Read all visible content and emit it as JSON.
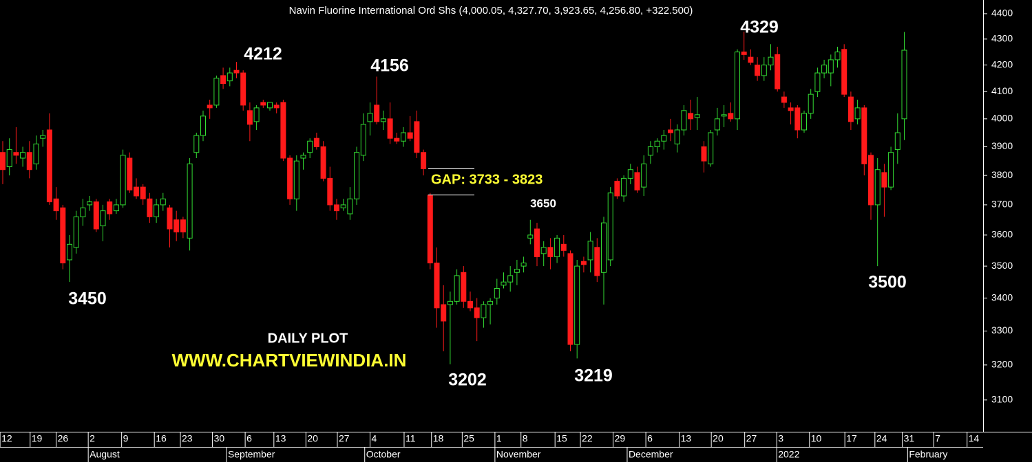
{
  "chart_data": {
    "type": "candlestick",
    "title": "Navin Fluorine International Ord Shs (4,000.05, 4,327.70, 3,923.65, 4,256.80, +322.500)",
    "log_scale": true,
    "up_color": "#33dd33",
    "down_color": "#ff1a1a",
    "ylim": [
      3012,
      4455
    ],
    "yticks": [
      3100,
      3200,
      3300,
      3400,
      3500,
      3600,
      3700,
      3800,
      3900,
      4000,
      4100,
      4200,
      4300,
      4400
    ],
    "open": [
      3880,
      3830,
      3880,
      3860,
      3880,
      3840,
      3930,
      3960,
      3720,
      3690,
      3520,
      3560,
      3660,
      3700,
      3710,
      3630,
      3710,
      3680,
      3700,
      3860,
      3760,
      3760,
      3720,
      3660,
      3700,
      3690,
      3650,
      3650,
      3590,
      3880,
      3940,
      4050,
      4050,
      4160,
      4140,
      4180,
      4170,
      4030,
      3990,
      4060,
      4040,
      4050,
      4060,
      3860,
      3720,
      3860,
      3880,
      3930,
      3900,
      3790,
      3700,
      3690,
      3670,
      3720,
      3870,
      3990,
      4050,
      3990,
      4000,
      3930,
      3920,
      3950,
      3990,
      3880,
      3733,
      3510,
      3380,
      3380,
      3390,
      3480,
      3390,
      3370,
      3340,
      3380,
      3400,
      3440,
      3450,
      3480,
      3500,
      3590,
      3620,
      3540,
      3560,
      3530,
      3570,
      3540,
      3260,
      3515,
      3520,
      3560,
      3480,
      3520,
      3780,
      3730,
      3790,
      3810,
      3760,
      3870,
      3900,
      3920,
      3960,
      3910,
      3960,
      4020,
      4005,
      3900,
      3840,
      3960,
      4010,
      4020,
      4000,
      4250,
      4230,
      4200,
      4160,
      4200,
      4240,
      4080,
      4040,
      4040,
      3960,
      4020,
      4100,
      4170,
      4170,
      4220,
      4260,
      4080,
      4000,
      4040,
      3870,
      3700,
      3810,
      3760,
      3890,
      4000.05
    ],
    "high": [
      3920,
      3930,
      3970,
      3900,
      3920,
      3940,
      3960,
      4020,
      3760,
      3700,
      3600,
      3680,
      3720,
      3730,
      3720,
      3700,
      3720,
      3720,
      3890,
      3880,
      3790,
      3770,
      3740,
      3720,
      3740,
      3700,
      3680,
      3660,
      3860,
      3950,
      4030,
      4070,
      4160,
      4190,
      4190,
      4212,
      4180,
      4060,
      4050,
      4070,
      4060,
      4060,
      4070,
      3870,
      3870,
      3880,
      3930,
      3950,
      3920,
      3830,
      3720,
      3720,
      3760,
      3900,
      4020,
      4060,
      4156,
      4030,
      4060,
      3950,
      3970,
      4010,
      4030,
      3890,
      3740,
      3560,
      3440,
      3420,
      3490,
      3500,
      3420,
      3400,
      3390,
      3400,
      3460,
      3480,
      3500,
      3520,
      3530,
      3650,
      3640,
      3580,
      3590,
      3600,
      3600,
      3550,
      3520,
      3530,
      3610,
      3590,
      3660,
      3760,
      3790,
      3800,
      3840,
      3830,
      3870,
      3920,
      3930,
      3960,
      4000,
      3980,
      4050,
      4070,
      4080,
      3920,
      3960,
      4040,
      4050,
      4060,
      4260,
      4329,
      4260,
      4230,
      4230,
      4280,
      4270,
      4100,
      4060,
      4050,
      4030,
      4110,
      4190,
      4220,
      4240,
      4270,
      4280,
      4100,
      4070,
      4050,
      3880,
      3860,
      3840,
      3900,
      4020,
      4327.7
    ],
    "low": [
      3770,
      3800,
      3840,
      3830,
      3790,
      3820,
      3900,
      3700,
      3650,
      3490,
      3450,
      3540,
      3630,
      3680,
      3610,
      3580,
      3650,
      3670,
      3690,
      3740,
      3720,
      3700,
      3640,
      3640,
      3680,
      3560,
      3580,
      3590,
      3550,
      3860,
      3920,
      4000,
      4040,
      4110,
      4120,
      4150,
      4030,
      3920,
      3960,
      4040,
      4030,
      4020,
      3850,
      3700,
      3680,
      3820,
      3860,
      3890,
      3780,
      3680,
      3650,
      3680,
      3650,
      3700,
      3850,
      3940,
      3980,
      3960,
      3910,
      3910,
      3900,
      3920,
      3860,
      3800,
      3490,
      3310,
      3240,
      3202,
      3380,
      3370,
      3360,
      3270,
      3310,
      3320,
      3380,
      3430,
      3420,
      3440,
      3480,
      3570,
      3500,
      3500,
      3490,
      3510,
      3530,
      3240,
      3219,
      3480,
      3480,
      3450,
      3380,
      3500,
      3720,
      3710,
      3770,
      3740,
      3730,
      3840,
      3880,
      3890,
      3920,
      3880,
      3940,
      3960,
      3960,
      3810,
      3830,
      3940,
      3970,
      3990,
      3960,
      4220,
      4200,
      4140,
      4140,
      4180,
      4100,
      4040,
      3980,
      3930,
      3950,
      4000,
      4080,
      4150,
      4120,
      4190,
      4080,
      3960,
      3980,
      3800,
      3650,
      3500,
      3660,
      3750,
      3840,
      3923.65
    ],
    "close": [
      3820,
      3890,
      3870,
      3880,
      3820,
      3910,
      3940,
      3710,
      3680,
      3510,
      3570,
      3660,
      3690,
      3710,
      3620,
      3680,
      3670,
      3700,
      3870,
      3750,
      3730,
      3720,
      3660,
      3700,
      3720,
      3620,
      3610,
      3610,
      3840,
      3940,
      4010,
      4040,
      4150,
      4130,
      4170,
      4170,
      4050,
      3980,
      4040,
      4050,
      4060,
      4040,
      3860,
      3720,
      3850,
      3870,
      3920,
      3900,
      3790,
      3700,
      3680,
      3700,
      3720,
      3880,
      3980,
      4020,
      3990,
      4000,
      3930,
      3920,
      3950,
      3930,
      3880,
      3823,
      3510,
      3370,
      3330,
      3390,
      3470,
      3390,
      3370,
      3340,
      3380,
      3390,
      3430,
      3450,
      3470,
      3490,
      3510,
      3600,
      3530,
      3560,
      3530,
      3590,
      3550,
      3260,
      3500,
      3505,
      3580,
      3470,
      3640,
      3740,
      3730,
      3790,
      3820,
      3750,
      3840,
      3900,
      3920,
      3940,
      3950,
      3960,
      4030,
      4000,
      4015,
      3850,
      3950,
      4000,
      4015,
      4000,
      4250,
      4240,
      4210,
      4160,
      4200,
      4230,
      4110,
      4060,
      4030,
      3960,
      4020,
      4090,
      4170,
      4200,
      4220,
      4250,
      4090,
      3990,
      4040,
      3840,
      3700,
      3820,
      3760,
      3880,
      3950,
      4256.8
    ],
    "xticks": [
      {
        "value": -0.4,
        "label": "12"
      },
      {
        "value": 4.1,
        "label": "19"
      },
      {
        "value": 8.0,
        "label": "26"
      },
      {
        "value": 12.8,
        "label": "2"
      },
      {
        "value": 17.8,
        "label": "9"
      },
      {
        "value": 22.7,
        "label": "16"
      },
      {
        "value": 26.6,
        "label": "23"
      },
      {
        "value": 31.4,
        "label": "30"
      },
      {
        "value": 36.3,
        "label": "6"
      },
      {
        "value": 40.6,
        "label": "13"
      },
      {
        "value": 45.4,
        "label": "20"
      },
      {
        "value": 50.1,
        "label": "27"
      },
      {
        "value": 55.0,
        "label": "4"
      },
      {
        "value": 60.1,
        "label": "11"
      },
      {
        "value": 64.2,
        "label": "18"
      },
      {
        "value": 68.8,
        "label": "25"
      },
      {
        "value": 73.7,
        "label": "1"
      },
      {
        "value": 77.6,
        "label": "8"
      },
      {
        "value": 82.7,
        "label": "15"
      },
      {
        "value": 86.5,
        "label": "22"
      },
      {
        "value": 91.4,
        "label": "29"
      },
      {
        "value": 96.3,
        "label": "6"
      },
      {
        "value": 101.3,
        "label": "13"
      },
      {
        "value": 106.1,
        "label": "20"
      },
      {
        "value": 111.1,
        "label": "27"
      },
      {
        "value": 115.9,
        "label": "3"
      },
      {
        "value": 120.8,
        "label": "10"
      },
      {
        "value": 126.1,
        "label": "17"
      },
      {
        "value": 130.6,
        "label": "24"
      },
      {
        "value": 134.7,
        "label": "31"
      },
      {
        "value": 139.4,
        "label": "7"
      },
      {
        "value": 144.4,
        "label": "14"
      }
    ],
    "month_ticks": [
      {
        "value": 12.8,
        "label": "August"
      },
      {
        "value": 33.5,
        "label": "September"
      },
      {
        "value": 54.2,
        "label": "October"
      },
      {
        "value": 73.7,
        "label": "November"
      },
      {
        "value": 93.5,
        "label": "December"
      },
      {
        "value": 115.9,
        "label": "2022"
      },
      {
        "value": 135.5,
        "label": "February"
      }
    ],
    "gap": {
      "label": "GAP: 3733 - 3823",
      "low": 3733,
      "high": 3823
    },
    "annotations": [
      "4212",
      "4156",
      "4329",
      "3450",
      "3202",
      "3219",
      "3500",
      "3650",
      "DAILY PLOT",
      "WWW.CHARTVIEWINDIA.IN"
    ]
  }
}
